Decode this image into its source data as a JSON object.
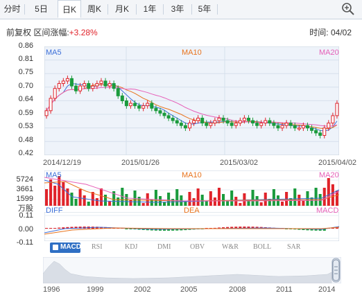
{
  "tabs": [
    "分时",
    "5日",
    "日K",
    "周K",
    "月K",
    "1年",
    "3年",
    "5年"
  ],
  "active_tab": "日K",
  "header": {
    "label": "前复权 区间涨幅:",
    "change": "+3.28%",
    "time_label": "时间:",
    "time_value": "04/02"
  },
  "main_chart": {
    "y_labels": [
      "0.86",
      "0.81",
      "0.75",
      "0.70",
      "0.64",
      "0.59",
      "0.53",
      "0.48",
      "0.42"
    ],
    "x_labels": [
      "2014/12/19",
      "2015/01/26",
      "2015/03/02",
      "2015/04/02"
    ],
    "legend": [
      "MA5",
      "MA10",
      "MA20"
    ]
  },
  "volume_chart": {
    "y_labels": [
      "5724",
      "3661",
      "1599"
    ],
    "unit": "万股",
    "legend": [
      "MA5",
      "MA10",
      "MA20"
    ]
  },
  "macd_chart": {
    "y_labels": [
      "0.11",
      "0.00",
      "-0.11"
    ],
    "legend": [
      "DIFF",
      "DEA",
      "MACD"
    ]
  },
  "indicator_tabs": [
    "MACD",
    "RSI",
    "KDJ",
    "DMI",
    "OBV",
    "W&R",
    "BOLL",
    "SAR"
  ],
  "active_indicator": "MACD",
  "timeline": {
    "labels": [
      "1996",
      "1999",
      "2002",
      "2005",
      "2008",
      "2011",
      "2014"
    ]
  },
  "colors": {
    "up": "#e0232a",
    "down": "#1a9b3c",
    "ma5": "#3c6fd8",
    "ma10": "#e8731c",
    "ma20": "#e65fb8"
  }
}
